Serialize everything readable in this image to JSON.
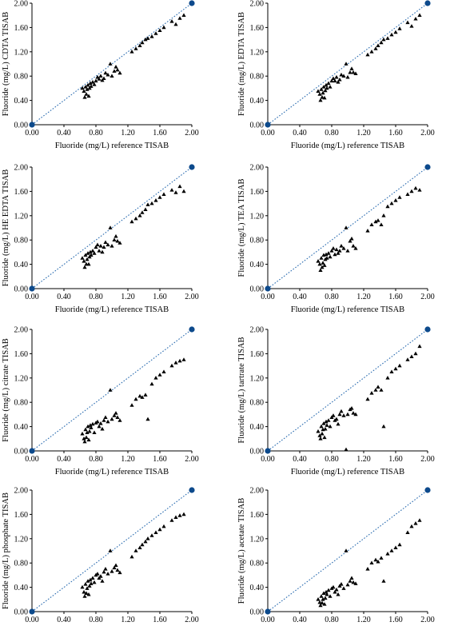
{
  "figure": {
    "x_axis_label": "Fluoride (mg/L) reference TISAB",
    "axis_min": 0,
    "axis_max": 2.0,
    "tick_values": [
      0.0,
      0.4,
      0.8,
      1.2,
      1.6,
      2.0
    ],
    "tick_labels": [
      "0.00",
      "0.40",
      "0.80",
      "1.20",
      "1.60",
      "2.00"
    ],
    "marker_color": "#000000",
    "identity_line_color": "#2b6cb0",
    "endpoint_color": "#0d4a8c"
  },
  "chart_data": [
    {
      "type": "scatter",
      "xlabel": "Fluoride (mg/L) reference TISAB",
      "ylabel": "Fluoride (mg/L) CDTA TISAB",
      "xlim": [
        0,
        2
      ],
      "ylim": [
        0,
        2
      ],
      "grid": false,
      "identity_line": [
        [
          0,
          0
        ],
        [
          2,
          2
        ]
      ],
      "x": [
        0.63,
        0.65,
        0.66,
        0.67,
        0.68,
        0.69,
        0.7,
        0.71,
        0.72,
        0.73,
        0.74,
        0.76,
        0.78,
        0.8,
        0.82,
        0.84,
        0.86,
        0.88,
        0.9,
        0.92,
        0.95,
        0.98,
        1.0,
        1.03,
        1.05,
        1.07,
        1.1,
        1.25,
        1.3,
        1.35,
        1.38,
        1.42,
        1.45,
        1.5,
        1.55,
        1.6,
        1.65,
        1.75,
        1.8,
        1.85,
        1.9
      ],
      "y": [
        0.6,
        0.55,
        0.45,
        0.62,
        0.5,
        0.58,
        0.65,
        0.47,
        0.6,
        0.68,
        0.63,
        0.7,
        0.66,
        0.72,
        0.78,
        0.75,
        0.8,
        0.73,
        0.76,
        0.85,
        0.82,
        1.0,
        0.8,
        0.88,
        0.95,
        0.9,
        0.85,
        1.2,
        1.25,
        1.3,
        1.35,
        1.4,
        1.42,
        1.45,
        1.5,
        1.55,
        1.6,
        1.7,
        1.65,
        1.75,
        1.8
      ]
    },
    {
      "type": "scatter",
      "xlabel": "Fluoride (mg/L) reference TISAB",
      "ylabel": "Fluoride (mg/L) EDTA TISAB",
      "xlim": [
        0,
        2
      ],
      "ylim": [
        0,
        2
      ],
      "grid": false,
      "identity_line": [
        [
          0,
          0
        ],
        [
          2,
          2
        ]
      ],
      "x": [
        0.63,
        0.65,
        0.66,
        0.67,
        0.68,
        0.69,
        0.7,
        0.71,
        0.72,
        0.73,
        0.74,
        0.76,
        0.78,
        0.8,
        0.82,
        0.84,
        0.86,
        0.88,
        0.9,
        0.92,
        0.95,
        0.98,
        1.0,
        1.03,
        1.05,
        1.07,
        1.1,
        1.25,
        1.3,
        1.35,
        1.38,
        1.42,
        1.45,
        1.5,
        1.55,
        1.6,
        1.65,
        1.75,
        1.8,
        1.85,
        1.9
      ],
      "y": [
        0.55,
        0.5,
        0.4,
        0.58,
        0.45,
        0.52,
        0.62,
        0.44,
        0.56,
        0.65,
        0.6,
        0.68,
        0.62,
        0.72,
        0.76,
        0.72,
        0.78,
        0.7,
        0.74,
        0.82,
        0.8,
        1.0,
        0.78,
        0.86,
        0.92,
        0.86,
        0.84,
        1.15,
        1.2,
        1.25,
        1.3,
        1.35,
        1.4,
        1.42,
        1.48,
        1.52,
        1.58,
        1.68,
        1.62,
        1.74,
        1.8
      ]
    },
    {
      "type": "scatter",
      "xlabel": "Fluoride (mg/L) reference TISAB",
      "ylabel": "Fluoride (mg/L) HE EDTA TISAB",
      "xlim": [
        0,
        2
      ],
      "ylim": [
        0,
        2
      ],
      "grid": false,
      "identity_line": [
        [
          0,
          0
        ],
        [
          2,
          2
        ]
      ],
      "x": [
        0.63,
        0.65,
        0.66,
        0.67,
        0.68,
        0.69,
        0.7,
        0.71,
        0.72,
        0.73,
        0.74,
        0.76,
        0.78,
        0.8,
        0.82,
        0.84,
        0.86,
        0.88,
        0.9,
        0.92,
        0.95,
        0.98,
        1.0,
        1.03,
        1.05,
        1.07,
        1.1,
        1.25,
        1.3,
        1.35,
        1.38,
        1.42,
        1.45,
        1.5,
        1.55,
        1.6,
        1.65,
        1.75,
        1.8,
        1.85,
        1.9
      ],
      "y": [
        0.5,
        0.45,
        0.35,
        0.55,
        0.4,
        0.48,
        0.58,
        0.4,
        0.52,
        0.6,
        0.55,
        0.62,
        0.58,
        0.68,
        0.72,
        0.62,
        0.7,
        0.6,
        0.68,
        0.76,
        0.72,
        1.0,
        0.7,
        0.8,
        0.86,
        0.78,
        0.75,
        1.1,
        1.15,
        1.2,
        1.25,
        1.3,
        1.38,
        1.4,
        1.45,
        1.5,
        1.55,
        1.62,
        1.58,
        1.68,
        1.6
      ]
    },
    {
      "type": "scatter",
      "xlabel": "Fluoride (mg/L) reference TISAB",
      "ylabel": "Fluoride (mg/L) TEA TISAB",
      "xlim": [
        0,
        2
      ],
      "ylim": [
        0,
        2
      ],
      "grid": false,
      "identity_line": [
        [
          0,
          0
        ],
        [
          2,
          2
        ]
      ],
      "x": [
        0.63,
        0.65,
        0.66,
        0.67,
        0.68,
        0.69,
        0.7,
        0.71,
        0.72,
        0.73,
        0.74,
        0.76,
        0.78,
        0.8,
        0.82,
        0.84,
        0.86,
        0.88,
        0.9,
        0.92,
        0.95,
        0.98,
        1.0,
        1.03,
        1.05,
        1.07,
        1.1,
        1.25,
        1.3,
        1.35,
        1.38,
        1.42,
        1.45,
        1.5,
        1.55,
        1.6,
        1.65,
        1.75,
        1.8,
        1.85,
        1.9
      ],
      "y": [
        0.45,
        0.4,
        0.3,
        0.5,
        0.35,
        0.42,
        0.55,
        0.38,
        0.48,
        0.56,
        0.5,
        0.58,
        0.52,
        0.62,
        0.66,
        0.56,
        0.64,
        0.58,
        0.62,
        0.7,
        0.66,
        1.0,
        0.62,
        0.78,
        0.82,
        0.7,
        0.66,
        0.95,
        1.05,
        1.1,
        1.12,
        1.05,
        1.2,
        1.35,
        1.4,
        1.45,
        1.5,
        1.55,
        1.6,
        1.65,
        1.62
      ]
    },
    {
      "type": "scatter",
      "xlabel": "Fluoride (mg/L) reference TISAB",
      "ylabel": "Fluoride (mg/L) citrate TISAB",
      "xlim": [
        0,
        2
      ],
      "ylim": [
        0,
        2
      ],
      "grid": false,
      "identity_line": [
        [
          0,
          0
        ],
        [
          2,
          2
        ]
      ],
      "x": [
        0.63,
        0.65,
        0.66,
        0.67,
        0.68,
        0.69,
        0.7,
        0.71,
        0.72,
        0.73,
        0.74,
        0.76,
        0.78,
        0.8,
        0.82,
        0.84,
        0.86,
        0.88,
        0.9,
        0.92,
        0.95,
        0.98,
        1.0,
        1.03,
        1.05,
        1.07,
        1.1,
        1.25,
        1.3,
        1.35,
        1.38,
        1.42,
        1.45,
        1.5,
        1.55,
        1.6,
        1.65,
        1.75,
        1.8,
        1.85,
        1.9
      ],
      "y": [
        0.28,
        0.2,
        0.15,
        0.35,
        0.22,
        0.3,
        0.4,
        0.18,
        0.32,
        0.42,
        0.38,
        0.44,
        0.3,
        0.46,
        0.48,
        0.4,
        0.45,
        0.36,
        0.5,
        0.55,
        0.48,
        1.0,
        0.52,
        0.58,
        0.62,
        0.55,
        0.5,
        0.75,
        0.85,
        0.9,
        0.88,
        0.92,
        0.52,
        1.1,
        1.2,
        1.25,
        1.3,
        1.4,
        1.45,
        1.48,
        1.5
      ]
    },
    {
      "type": "scatter",
      "xlabel": "Fluoride (mg/L) reference TISAB",
      "ylabel": "Fluoride (mg/L) tartrate TISAB",
      "xlim": [
        0,
        2
      ],
      "ylim": [
        0,
        2
      ],
      "grid": false,
      "identity_line": [
        [
          0,
          0
        ],
        [
          2,
          2
        ]
      ],
      "x": [
        0.63,
        0.65,
        0.66,
        0.67,
        0.68,
        0.69,
        0.7,
        0.71,
        0.72,
        0.73,
        0.74,
        0.76,
        0.78,
        0.8,
        0.82,
        0.84,
        0.86,
        0.88,
        0.9,
        0.92,
        0.95,
        0.98,
        1.0,
        1.03,
        1.05,
        1.07,
        1.1,
        1.25,
        1.3,
        1.35,
        1.38,
        1.42,
        1.45,
        1.5,
        1.55,
        1.6,
        1.65,
        1.75,
        1.8,
        1.85,
        1.9
      ],
      "y": [
        0.32,
        0.25,
        0.2,
        0.4,
        0.28,
        0.35,
        0.45,
        0.22,
        0.36,
        0.48,
        0.42,
        0.5,
        0.4,
        0.55,
        0.58,
        0.5,
        0.52,
        0.44,
        0.6,
        0.65,
        0.58,
        0.02,
        0.6,
        0.68,
        0.7,
        0.62,
        0.6,
        0.85,
        0.95,
        1.0,
        1.05,
        1.0,
        0.4,
        1.2,
        1.3,
        1.35,
        1.4,
        1.5,
        1.55,
        1.6,
        1.72
      ]
    },
    {
      "type": "scatter",
      "xlabel": "Fluoride (mg/L) reference TISAB",
      "ylabel": "Fluoride (mg/L) phosphate TISAB",
      "xlim": [
        0,
        2
      ],
      "ylim": [
        0,
        2
      ],
      "grid": false,
      "identity_line": [
        [
          0,
          0
        ],
        [
          2,
          2
        ]
      ],
      "x": [
        0.63,
        0.65,
        0.66,
        0.67,
        0.68,
        0.69,
        0.7,
        0.71,
        0.72,
        0.73,
        0.74,
        0.76,
        0.78,
        0.8,
        0.82,
        0.84,
        0.86,
        0.88,
        0.9,
        0.92,
        0.95,
        0.98,
        1.0,
        1.03,
        1.05,
        1.07,
        1.1,
        1.25,
        1.3,
        1.35,
        1.38,
        1.42,
        1.45,
        1.5,
        1.55,
        1.6,
        1.65,
        1.75,
        1.8,
        1.85,
        1.9
      ],
      "y": [
        0.4,
        0.32,
        0.25,
        0.45,
        0.3,
        0.38,
        0.5,
        0.28,
        0.42,
        0.52,
        0.46,
        0.55,
        0.48,
        0.6,
        0.62,
        0.55,
        0.58,
        0.5,
        0.65,
        0.7,
        0.62,
        1.0,
        0.66,
        0.72,
        0.76,
        0.68,
        0.64,
        0.9,
        1.0,
        1.05,
        1.1,
        1.15,
        1.2,
        1.25,
        1.3,
        1.35,
        1.4,
        1.5,
        1.55,
        1.58,
        1.6
      ]
    },
    {
      "type": "scatter",
      "xlabel": "Fluoride (mg/L) reference TISAB",
      "ylabel": "Fluoride (mg/L) acetate TISAB",
      "xlim": [
        0,
        2
      ],
      "ylim": [
        0,
        2
      ],
      "grid": false,
      "identity_line": [
        [
          0,
          0
        ],
        [
          2,
          2
        ]
      ],
      "x": [
        0.63,
        0.65,
        0.66,
        0.67,
        0.68,
        0.69,
        0.7,
        0.71,
        0.72,
        0.73,
        0.74,
        0.76,
        0.78,
        0.8,
        0.82,
        0.84,
        0.86,
        0.88,
        0.9,
        0.92,
        0.95,
        0.98,
        1.0,
        1.03,
        1.05,
        1.07,
        1.1,
        1.25,
        1.3,
        1.35,
        1.38,
        1.42,
        1.45,
        1.5,
        1.55,
        1.6,
        1.65,
        1.75,
        1.8,
        1.85,
        1.9
      ],
      "y": [
        0.2,
        0.15,
        0.1,
        0.25,
        0.14,
        0.2,
        0.3,
        0.12,
        0.22,
        0.32,
        0.28,
        0.35,
        0.25,
        0.38,
        0.4,
        0.32,
        0.36,
        0.28,
        0.42,
        0.45,
        0.38,
        1.0,
        0.44,
        0.5,
        0.55,
        0.48,
        0.46,
        0.7,
        0.8,
        0.85,
        0.82,
        0.88,
        0.5,
        0.95,
        1.0,
        1.05,
        1.1,
        1.3,
        1.4,
        1.45,
        1.5
      ]
    }
  ]
}
